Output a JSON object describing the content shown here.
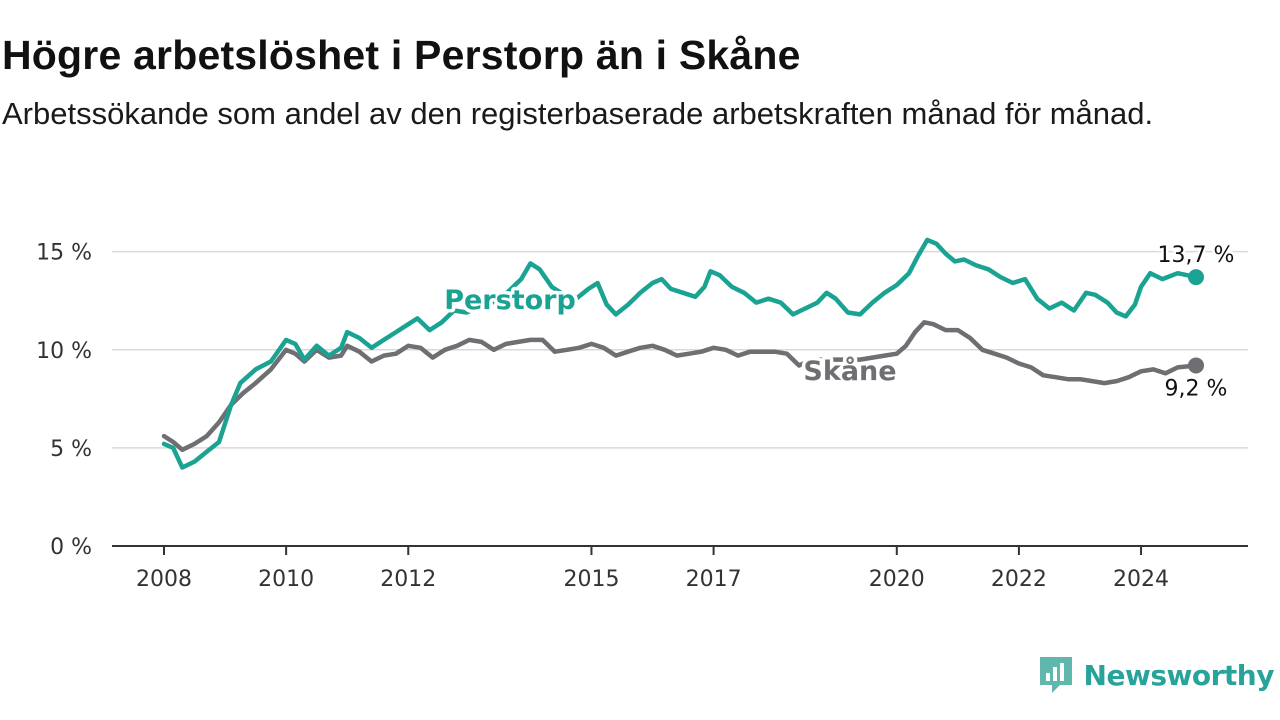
{
  "header": {
    "title": "Högre arbetslöshet i Perstorp än i Skåne",
    "subtitle": "Arbetssökande som andel av den registerbaserade arbetskraften månad för månad."
  },
  "branding": {
    "name": "Newsworthy",
    "icon": "newsworthy-logo-icon",
    "color": "#27a39b"
  },
  "chart_data": {
    "type": "line",
    "title": "Högre arbetslöshet i Perstorp än i Skåne",
    "subtitle": "Arbetssökande som andel av den registerbaserade arbetskraften månad för månad.",
    "xlabel": "",
    "ylabel": "",
    "x_unit": "year",
    "xlim": [
      2008.0,
      2024.9
    ],
    "ylim": [
      0,
      16
    ],
    "x_ticks": [
      2008,
      2010,
      2012,
      2015,
      2017,
      2020,
      2022,
      2024
    ],
    "x_tick_labels": [
      "2008",
      "2010",
      "2012",
      "2015",
      "2017",
      "2020",
      "2022",
      "2024"
    ],
    "y_ticks": [
      0,
      5,
      10,
      15
    ],
    "y_tick_labels": [
      "0 %",
      "5 %",
      "10 %",
      "15 %"
    ],
    "grid": "horizontal",
    "legend": "inline labels",
    "series": [
      {
        "name": "Perstorp",
        "color": "#1aa393",
        "end_label": "13,7 %",
        "points": [
          [
            2008.0,
            5.2
          ],
          [
            2008.15,
            5.0
          ],
          [
            2008.3,
            4.0
          ],
          [
            2008.5,
            4.3
          ],
          [
            2008.7,
            4.8
          ],
          [
            2008.9,
            5.3
          ],
          [
            2009.1,
            7.2
          ],
          [
            2009.25,
            8.3
          ],
          [
            2009.5,
            9.0
          ],
          [
            2009.75,
            9.4
          ],
          [
            2010.0,
            10.5
          ],
          [
            2010.15,
            10.3
          ],
          [
            2010.3,
            9.5
          ],
          [
            2010.5,
            10.2
          ],
          [
            2010.7,
            9.7
          ],
          [
            2010.9,
            10.1
          ],
          [
            2011.0,
            10.9
          ],
          [
            2011.2,
            10.6
          ],
          [
            2011.4,
            10.1
          ],
          [
            2011.6,
            10.5
          ],
          [
            2011.8,
            10.9
          ],
          [
            2012.0,
            11.3
          ],
          [
            2012.15,
            11.6
          ],
          [
            2012.35,
            11.0
          ],
          [
            2012.55,
            11.4
          ],
          [
            2012.75,
            12.0
          ],
          [
            2012.95,
            11.9
          ],
          [
            2013.2,
            12.2
          ],
          [
            2013.45,
            12.5
          ],
          [
            2013.65,
            13.0
          ],
          [
            2013.85,
            13.6
          ],
          [
            2014.0,
            14.4
          ],
          [
            2014.15,
            14.1
          ],
          [
            2014.35,
            13.2
          ],
          [
            2014.55,
            12.8
          ],
          [
            2014.75,
            12.6
          ],
          [
            2014.95,
            13.1
          ],
          [
            2015.1,
            13.4
          ],
          [
            2015.25,
            12.3
          ],
          [
            2015.4,
            11.8
          ],
          [
            2015.6,
            12.3
          ],
          [
            2015.8,
            12.9
          ],
          [
            2016.0,
            13.4
          ],
          [
            2016.15,
            13.6
          ],
          [
            2016.3,
            13.1
          ],
          [
            2016.5,
            12.9
          ],
          [
            2016.7,
            12.7
          ],
          [
            2016.85,
            13.2
          ],
          [
            2016.95,
            14.0
          ],
          [
            2017.1,
            13.8
          ],
          [
            2017.3,
            13.2
          ],
          [
            2017.5,
            12.9
          ],
          [
            2017.7,
            12.4
          ],
          [
            2017.9,
            12.6
          ],
          [
            2018.1,
            12.4
          ],
          [
            2018.3,
            11.8
          ],
          [
            2018.5,
            12.1
          ],
          [
            2018.7,
            12.4
          ],
          [
            2018.85,
            12.9
          ],
          [
            2019.0,
            12.6
          ],
          [
            2019.2,
            11.9
          ],
          [
            2019.4,
            11.8
          ],
          [
            2019.6,
            12.4
          ],
          [
            2019.8,
            12.9
          ],
          [
            2020.0,
            13.3
          ],
          [
            2020.2,
            13.9
          ],
          [
            2020.35,
            14.8
          ],
          [
            2020.5,
            15.6
          ],
          [
            2020.65,
            15.4
          ],
          [
            2020.8,
            14.9
          ],
          [
            2020.95,
            14.5
          ],
          [
            2021.1,
            14.6
          ],
          [
            2021.3,
            14.3
          ],
          [
            2021.5,
            14.1
          ],
          [
            2021.7,
            13.7
          ],
          [
            2021.9,
            13.4
          ],
          [
            2022.1,
            13.6
          ],
          [
            2022.3,
            12.6
          ],
          [
            2022.5,
            12.1
          ],
          [
            2022.7,
            12.4
          ],
          [
            2022.9,
            12.0
          ],
          [
            2023.1,
            12.9
          ],
          [
            2023.25,
            12.8
          ],
          [
            2023.45,
            12.4
          ],
          [
            2023.6,
            11.9
          ],
          [
            2023.75,
            11.7
          ],
          [
            2023.9,
            12.3
          ],
          [
            2024.0,
            13.2
          ],
          [
            2024.15,
            13.9
          ],
          [
            2024.35,
            13.6
          ],
          [
            2024.6,
            13.9
          ],
          [
            2024.9,
            13.7
          ]
        ]
      },
      {
        "name": "Skåne",
        "color": "#6e6e73",
        "end_label": "9,2 %",
        "points": [
          [
            2008.0,
            5.6
          ],
          [
            2008.15,
            5.3
          ],
          [
            2008.3,
            4.9
          ],
          [
            2008.5,
            5.2
          ],
          [
            2008.7,
            5.6
          ],
          [
            2008.9,
            6.3
          ],
          [
            2009.1,
            7.2
          ],
          [
            2009.3,
            7.8
          ],
          [
            2009.5,
            8.3
          ],
          [
            2009.75,
            9.0
          ],
          [
            2010.0,
            10.0
          ],
          [
            2010.15,
            9.8
          ],
          [
            2010.3,
            9.4
          ],
          [
            2010.5,
            10.0
          ],
          [
            2010.7,
            9.6
          ],
          [
            2010.9,
            9.7
          ],
          [
            2011.0,
            10.2
          ],
          [
            2011.2,
            9.9
          ],
          [
            2011.4,
            9.4
          ],
          [
            2011.6,
            9.7
          ],
          [
            2011.8,
            9.8
          ],
          [
            2012.0,
            10.2
          ],
          [
            2012.2,
            10.1
          ],
          [
            2012.4,
            9.6
          ],
          [
            2012.6,
            10.0
          ],
          [
            2012.8,
            10.2
          ],
          [
            2013.0,
            10.5
          ],
          [
            2013.2,
            10.4
          ],
          [
            2013.4,
            10.0
          ],
          [
            2013.6,
            10.3
          ],
          [
            2013.8,
            10.4
          ],
          [
            2014.0,
            10.5
          ],
          [
            2014.2,
            10.5
          ],
          [
            2014.4,
            9.9
          ],
          [
            2014.6,
            10.0
          ],
          [
            2014.8,
            10.1
          ],
          [
            2015.0,
            10.3
          ],
          [
            2015.2,
            10.1
          ],
          [
            2015.4,
            9.7
          ],
          [
            2015.6,
            9.9
          ],
          [
            2015.8,
            10.1
          ],
          [
            2016.0,
            10.2
          ],
          [
            2016.2,
            10.0
          ],
          [
            2016.4,
            9.7
          ],
          [
            2016.6,
            9.8
          ],
          [
            2016.8,
            9.9
          ],
          [
            2017.0,
            10.1
          ],
          [
            2017.2,
            10.0
          ],
          [
            2017.4,
            9.7
          ],
          [
            2017.6,
            9.9
          ],
          [
            2017.8,
            9.9
          ],
          [
            2018.0,
            9.9
          ],
          [
            2018.2,
            9.8
          ],
          [
            2018.4,
            9.2
          ],
          [
            2018.6,
            9.5
          ],
          [
            2018.8,
            9.5
          ],
          [
            2019.0,
            9.5
          ],
          [
            2019.2,
            9.5
          ],
          [
            2019.4,
            9.5
          ],
          [
            2019.6,
            9.6
          ],
          [
            2019.8,
            9.7
          ],
          [
            2020.0,
            9.8
          ],
          [
            2020.15,
            10.2
          ],
          [
            2020.3,
            10.9
          ],
          [
            2020.45,
            11.4
          ],
          [
            2020.6,
            11.3
          ],
          [
            2020.8,
            11.0
          ],
          [
            2021.0,
            11.0
          ],
          [
            2021.2,
            10.6
          ],
          [
            2021.4,
            10.0
          ],
          [
            2021.6,
            9.8
          ],
          [
            2021.8,
            9.6
          ],
          [
            2022.0,
            9.3
          ],
          [
            2022.2,
            9.1
          ],
          [
            2022.4,
            8.7
          ],
          [
            2022.6,
            8.6
          ],
          [
            2022.8,
            8.5
          ],
          [
            2023.0,
            8.5
          ],
          [
            2023.2,
            8.4
          ],
          [
            2023.4,
            8.3
          ],
          [
            2023.6,
            8.4
          ],
          [
            2023.8,
            8.6
          ],
          [
            2024.0,
            8.9
          ],
          [
            2024.2,
            9.0
          ],
          [
            2024.4,
            8.8
          ],
          [
            2024.6,
            9.1
          ],
          [
            2024.9,
            9.2
          ]
        ]
      }
    ]
  }
}
